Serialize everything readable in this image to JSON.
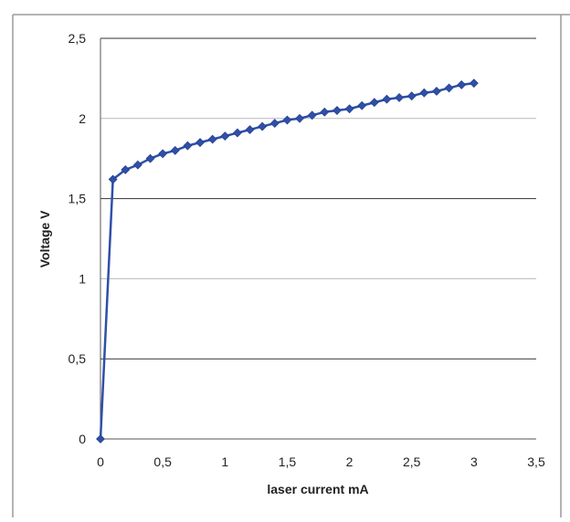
{
  "chart_data": {
    "type": "line",
    "title": "",
    "xlabel": "laser current mA",
    "ylabel": "Voltage V",
    "xlim": [
      0,
      3.5
    ],
    "ylim": [
      0,
      2.5
    ],
    "xticks": [
      0,
      0.5,
      1,
      1.5,
      2,
      2.5,
      3,
      3.5
    ],
    "xtick_labels": [
      "0",
      "0,5",
      "1",
      "1,5",
      "2",
      "2,5",
      "3",
      "3,5"
    ],
    "yticks": [
      0,
      0.5,
      1,
      1.5,
      2,
      2.5
    ],
    "ytick_labels": [
      "0",
      "0,5",
      "1",
      "1,5",
      "2",
      "2,5"
    ],
    "grid": "horizontal",
    "legend": "none",
    "series": [
      {
        "color": "#2f4fa8",
        "marker": "diamond",
        "x": [
          0,
          0.1,
          0.2,
          0.3,
          0.4,
          0.5,
          0.6,
          0.7,
          0.8,
          0.9,
          1.0,
          1.1,
          1.2,
          1.3,
          1.4,
          1.5,
          1.6,
          1.7,
          1.8,
          1.9,
          2.0,
          2.1,
          2.2,
          2.3,
          2.4,
          2.5,
          2.6,
          2.7,
          2.8,
          2.9,
          3.0
        ],
        "y": [
          0,
          1.62,
          1.68,
          1.71,
          1.75,
          1.78,
          1.8,
          1.83,
          1.85,
          1.87,
          1.89,
          1.91,
          1.93,
          1.95,
          1.97,
          1.99,
          2.0,
          2.02,
          2.04,
          2.05,
          2.06,
          2.08,
          2.1,
          2.12,
          2.13,
          2.14,
          2.16,
          2.17,
          2.19,
          2.21,
          2.22
        ]
      }
    ]
  }
}
